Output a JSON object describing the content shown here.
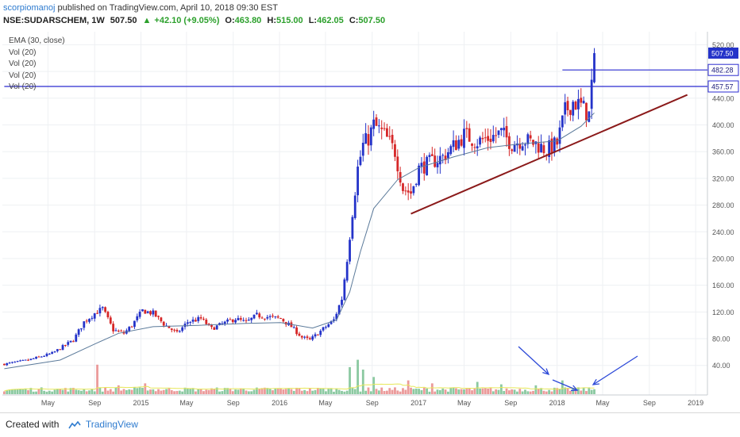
{
  "header": {
    "author": "scorpiomanoj",
    "published_text": "published on TradingView.com, April 10, 2018 09:30 EST",
    "symbol": "NSE:SUDARSCHEM, 1W",
    "last": "507.50",
    "change": "+42.10 (+9.05%)",
    "open_label": "O:",
    "open": "463.80",
    "high_label": "H:",
    "high": "515.00",
    "low_label": "L:",
    "low": "462.05",
    "close_label": "C:",
    "close": "507.50"
  },
  "legend": [
    "EMA (30, close)",
    "Vol (20)",
    "Vol (20)",
    "Vol (20)",
    "Vol (20)"
  ],
  "footer": {
    "created_with": "Created with",
    "brand": "TradingView"
  },
  "colors": {
    "up": "#2433c9",
    "down": "#d62728",
    "ema": "#5b7a9a",
    "trend": "#8b1a1a",
    "level": "#2b2bd0",
    "vol_up": "#7ec397",
    "vol_down": "#e98f8f",
    "vol_ma": "#e8e85a",
    "arrow": "#2d4ad8"
  },
  "chart_data": {
    "type": "candlestick",
    "x_start": "2014-01",
    "x_end": "2019-02",
    "ylim": [
      10,
      530
    ],
    "y_ticks": [
      40,
      80,
      120,
      160,
      200,
      240,
      280,
      320,
      360,
      400,
      440,
      480,
      520
    ],
    "y_tick_labels": [
      "40.00",
      "80.00",
      "120.00",
      "160.00",
      "200.00",
      "240.00",
      "280.00",
      "320.00",
      "360.00",
      "400.00",
      "440.00",
      "480.00",
      "520.00"
    ],
    "x_ticks": [
      {
        "label": "May",
        "date": "2014-05"
      },
      {
        "label": "Sep",
        "date": "2014-09"
      },
      {
        "label": "2015",
        "date": "2015-01"
      },
      {
        "label": "May",
        "date": "2015-05"
      },
      {
        "label": "Sep",
        "date": "2015-09"
      },
      {
        "label": "2016",
        "date": "2016-01"
      },
      {
        "label": "May",
        "date": "2016-05"
      },
      {
        "label": "Sep",
        "date": "2016-09"
      },
      {
        "label": "2017",
        "date": "2017-01"
      },
      {
        "label": "May",
        "date": "2017-05"
      },
      {
        "label": "Sep",
        "date": "2017-09"
      },
      {
        "label": "2018",
        "date": "2018-01"
      },
      {
        "label": "May",
        "date": "2018-05"
      },
      {
        "label": "Sep",
        "date": "2018-09"
      },
      {
        "label": "2019",
        "date": "2019-01"
      }
    ],
    "price_path": [
      [
        "2014-01-06",
        42
      ],
      [
        "2014-03-10",
        48
      ],
      [
        "2014-05-12",
        58
      ],
      [
        "2014-07-07",
        78
      ],
      [
        "2014-08-04",
        105
      ],
      [
        "2014-09-01",
        118
      ],
      [
        "2014-09-22",
        125
      ],
      [
        "2014-10-20",
        93
      ],
      [
        "2014-11-17",
        88
      ],
      [
        "2014-12-08",
        100
      ],
      [
        "2015-01-05",
        122
      ],
      [
        "2015-02-02",
        118
      ],
      [
        "2015-03-02",
        102
      ],
      [
        "2015-04-06",
        88
      ],
      [
        "2015-05-04",
        105
      ],
      [
        "2015-06-08",
        110
      ],
      [
        "2015-07-06",
        95
      ],
      [
        "2015-08-03",
        102
      ],
      [
        "2015-09-07",
        110
      ],
      [
        "2015-10-05",
        104
      ],
      [
        "2015-11-02",
        115
      ],
      [
        "2015-12-07",
        112
      ],
      [
        "2016-01-04",
        110
      ],
      [
        "2016-02-01",
        98
      ],
      [
        "2016-02-29",
        82
      ],
      [
        "2016-03-21",
        78
      ],
      [
        "2016-04-11",
        88
      ],
      [
        "2016-05-02",
        98
      ],
      [
        "2016-05-23",
        108
      ],
      [
        "2016-06-13",
        140
      ],
      [
        "2016-06-27",
        200
      ],
      [
        "2016-07-11",
        270
      ],
      [
        "2016-07-25",
        335
      ],
      [
        "2016-08-08",
        370
      ],
      [
        "2016-08-22",
        380
      ],
      [
        "2016-09-05",
        400
      ],
      [
        "2016-10-03",
        385
      ],
      [
        "2016-10-31",
        360
      ],
      [
        "2016-11-21",
        305
      ],
      [
        "2016-12-12",
        298
      ],
      [
        "2017-01-02",
        335
      ],
      [
        "2017-02-06",
        345
      ],
      [
        "2017-03-06",
        352
      ],
      [
        "2017-04-03",
        368
      ],
      [
        "2017-05-01",
        385
      ],
      [
        "2017-06-05",
        375
      ],
      [
        "2017-07-03",
        380
      ],
      [
        "2017-08-07",
        388
      ],
      [
        "2017-09-04",
        372
      ],
      [
        "2017-10-02",
        378
      ],
      [
        "2017-11-06",
        372
      ],
      [
        "2017-12-04",
        362
      ],
      [
        "2018-01-01",
        372
      ],
      [
        "2018-01-22",
        420
      ],
      [
        "2018-02-12",
        435
      ],
      [
        "2018-03-05",
        428
      ],
      [
        "2018-03-26",
        415
      ],
      [
        "2018-04-09",
        507.5
      ]
    ],
    "ema_path": [
      [
        "2014-01-06",
        35
      ],
      [
        "2014-06-02",
        48
      ],
      [
        "2014-09-01",
        72
      ],
      [
        "2014-11-03",
        88
      ],
      [
        "2015-02-02",
        98
      ],
      [
        "2015-06-01",
        100
      ],
      [
        "2015-10-05",
        103
      ],
      [
        "2016-01-04",
        104
      ],
      [
        "2016-03-28",
        96
      ],
      [
        "2016-05-30",
        108
      ],
      [
        "2016-07-04",
        150
      ],
      [
        "2016-08-01",
        210
      ],
      [
        "2016-09-05",
        275
      ],
      [
        "2016-11-07",
        318
      ],
      [
        "2017-01-02",
        336
      ],
      [
        "2017-04-03",
        352
      ],
      [
        "2017-07-03",
        366
      ],
      [
        "2017-10-02",
        372
      ],
      [
        "2018-01-01",
        376
      ],
      [
        "2018-03-05",
        398
      ],
      [
        "2018-04-09",
        418
      ]
    ],
    "volume_spikes": [
      [
        "2014-09-08",
        0.6,
        "down"
      ],
      [
        "2014-11-03",
        0.18,
        "up"
      ],
      [
        "2015-01-12",
        0.22,
        "up"
      ],
      [
        "2015-06-08",
        0.1,
        "up"
      ],
      [
        "2016-07-04",
        0.55,
        "up"
      ],
      [
        "2016-07-25",
        0.7,
        "up"
      ],
      [
        "2016-08-08",
        0.5,
        "up"
      ],
      [
        "2016-09-05",
        0.35,
        "up"
      ],
      [
        "2016-12-05",
        0.28,
        "down"
      ],
      [
        "2017-02-06",
        0.22,
        "up"
      ],
      [
        "2017-06-05",
        0.25,
        "up"
      ],
      [
        "2017-08-07",
        0.2,
        "up"
      ],
      [
        "2017-11-06",
        0.18,
        "up"
      ],
      [
        "2018-01-15",
        0.28,
        "up"
      ],
      [
        "2018-04-09",
        0.1,
        "up"
      ]
    ],
    "annotations": {
      "horizontal_lines": [
        {
          "label": "482.28",
          "price": 482.28,
          "from": "2018-01-15"
        },
        {
          "label": "457.57",
          "price": 457.57,
          "from": "2014-01-06"
        }
      ],
      "last_price_label": "507.50",
      "trendline": {
        "from": [
          "2016-12-12",
          267
        ],
        "to": [
          "2018-12-10",
          445
        ]
      }
    }
  }
}
